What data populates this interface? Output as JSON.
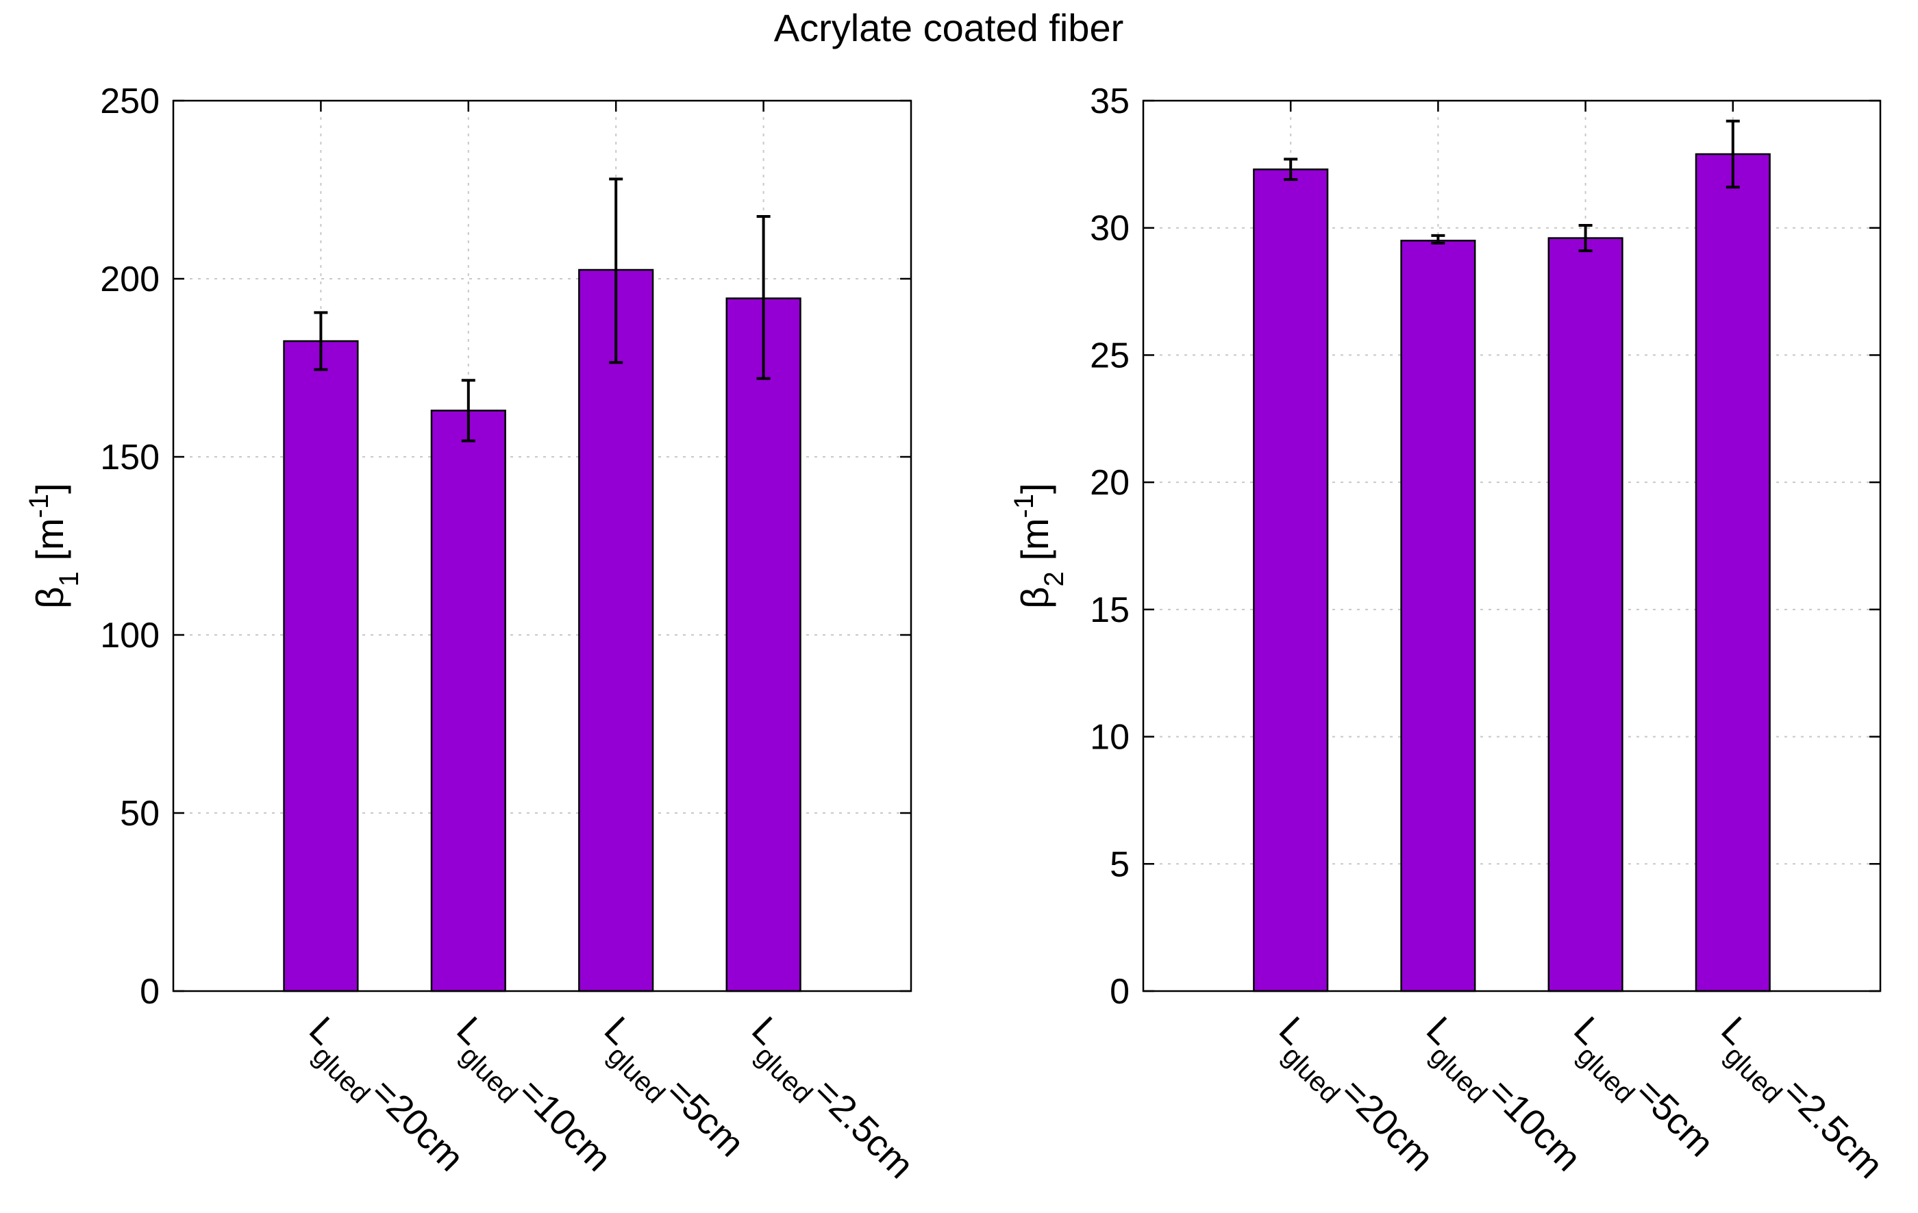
{
  "title": "Acrylate coated fiber",
  "colors": {
    "bar": "#9400d3",
    "grid": "#c8c8c8",
    "axis": "#000000"
  },
  "chart_data": [
    {
      "type": "bar",
      "ylabel": {
        "symbol": "β",
        "sub": "1",
        "unit_pre": " [m",
        "unit_sup": "-1",
        "unit_post": "]"
      },
      "categories": [
        {
          "main": "L",
          "sub": "glued",
          "tail": "=20cm"
        },
        {
          "main": "L",
          "sub": "glued",
          "tail": "=10cm"
        },
        {
          "main": "L",
          "sub": "glued",
          "tail": "=5cm"
        },
        {
          "main": "L",
          "sub": "glued",
          "tail": "=2.5cm"
        }
      ],
      "values": [
        182.5,
        163,
        202.5,
        194.5
      ],
      "errors": [
        [
          174.5,
          190.5
        ],
        [
          154.5,
          171.5
        ],
        [
          176.5,
          228
        ],
        [
          172,
          217.5
        ]
      ],
      "ylim": [
        0,
        250
      ],
      "yticks": [
        0,
        50,
        100,
        150,
        200,
        250
      ],
      "ytick_labels": [
        "0",
        "50",
        "100",
        "150",
        "200",
        "250"
      ],
      "grid": true
    },
    {
      "type": "bar",
      "ylabel": {
        "symbol": "β",
        "sub": "2",
        "unit_pre": " [m",
        "unit_sup": "-1",
        "unit_post": "]"
      },
      "categories": [
        {
          "main": "L",
          "sub": "glued",
          "tail": "=20cm"
        },
        {
          "main": "L",
          "sub": "glued",
          "tail": "=10cm"
        },
        {
          "main": "L",
          "sub": "glued",
          "tail": "=5cm"
        },
        {
          "main": "L",
          "sub": "glued",
          "tail": "=2.5cm"
        }
      ],
      "values": [
        32.3,
        29.5,
        29.6,
        32.9
      ],
      "errors": [
        [
          31.9,
          32.7
        ],
        [
          29.4,
          29.7
        ],
        [
          29.1,
          30.1
        ],
        [
          31.6,
          34.2
        ]
      ],
      "ylim": [
        0,
        35
      ],
      "yticks": [
        0,
        5,
        10,
        15,
        20,
        25,
        30,
        35
      ],
      "ytick_labels": [
        "0",
        "5",
        "10",
        "15",
        "20",
        "25",
        "30",
        "35"
      ],
      "grid": true
    }
  ]
}
